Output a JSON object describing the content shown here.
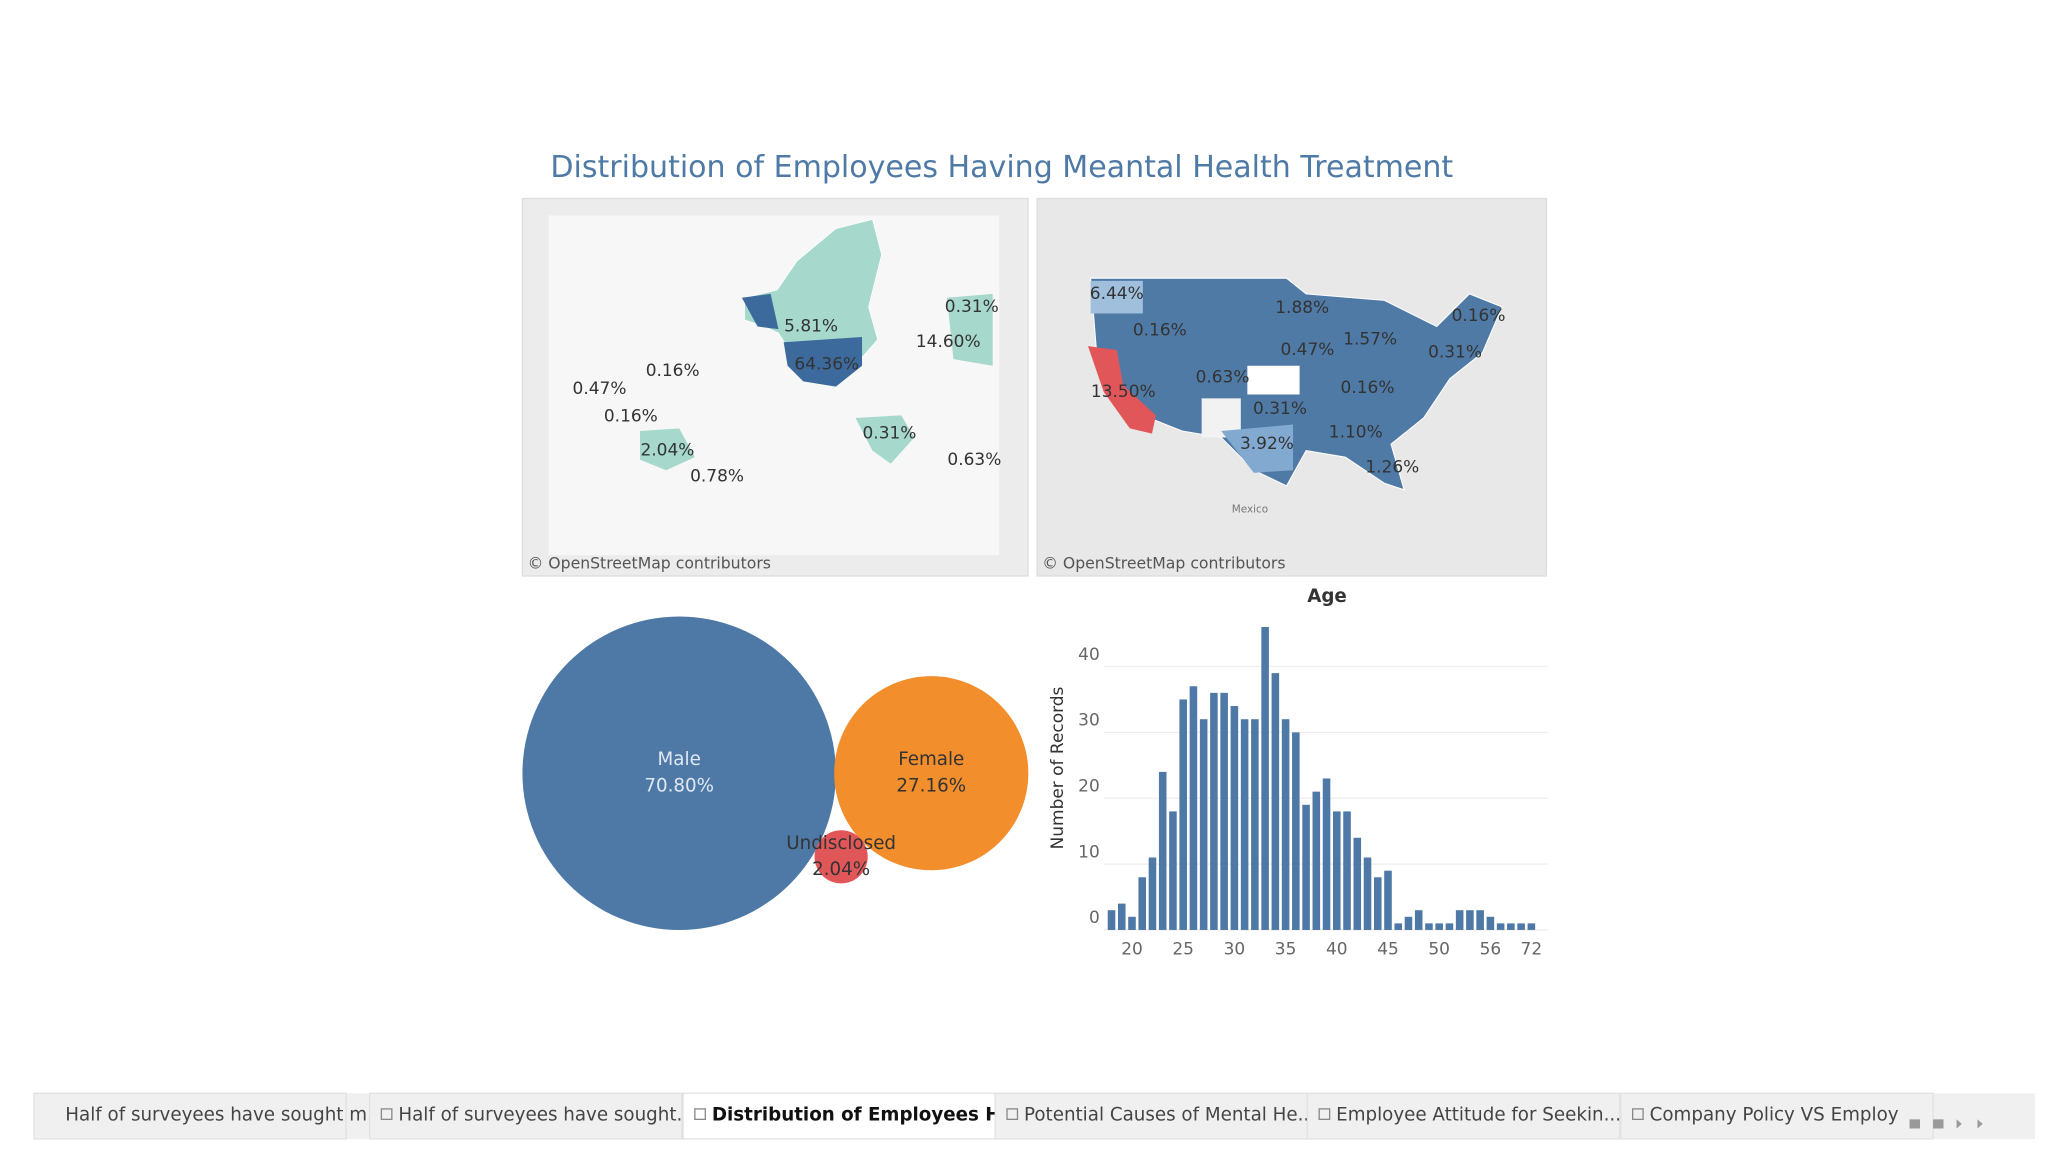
{
  "dashboard_title": "Distribution of Employees Having Meantal Health Treatment",
  "world_map": {
    "labels": [
      "5.81%",
      "64.36%",
      "0.16%",
      "0.47%",
      "0.16%",
      "2.04%",
      "0.78%",
      "0.31%",
      "0.31%",
      "14.60%",
      "0.63%"
    ],
    "attribution": "© OpenStreetMap contributors"
  },
  "us_map": {
    "labels": [
      "6.44%",
      "0.16%",
      "1.88%",
      "0.47%",
      "1.57%",
      "0.16%",
      "0.31%",
      "13.50%",
      "0.63%",
      "0.16%",
      "0.31%",
      "1.10%",
      "3.92%",
      "1.26%"
    ],
    "place_label": "Mexico",
    "attribution": "© OpenStreetMap contributors"
  },
  "chart_data": [
    {
      "type": "bubble",
      "categories": [
        "Male",
        "Female",
        "Undisclosed"
      ],
      "values": [
        70.8,
        27.16,
        2.04
      ],
      "value_labels": [
        "70.80%",
        "27.16%",
        "2.04%"
      ],
      "colors": [
        "#4e79a7",
        "#f28e2b",
        "#e15759"
      ]
    },
    {
      "type": "bar",
      "x_label": "Age",
      "y_label": "Number of Records",
      "categories": [
        null,
        null,
        20,
        null,
        null,
        null,
        null,
        25,
        null,
        null,
        null,
        null,
        30,
        null,
        null,
        null,
        null,
        35,
        null,
        null,
        null,
        null,
        40,
        null,
        null,
        null,
        null,
        45,
        null,
        null,
        null,
        null,
        50,
        null,
        null,
        null,
        null,
        56,
        null,
        null,
        null,
        72
      ],
      "values": [
        3,
        4,
        2,
        8,
        11,
        24,
        18,
        35,
        37,
        32,
        36,
        36,
        34,
        32,
        32,
        46,
        39,
        32,
        30,
        19,
        21,
        23,
        18,
        18,
        14,
        11,
        8,
        9,
        1,
        2,
        3,
        1,
        1,
        1,
        3,
        3,
        3,
        2,
        1,
        1,
        1,
        1
      ],
      "color": "#4e79a7",
      "ylim": [
        0,
        47
      ],
      "yticks": [
        0,
        10,
        20,
        30,
        40
      ],
      "grid": true
    }
  ],
  "tabs": [
    "Half of surveyees have sought m...",
    "Half of surveyees have sought...",
    "Distribution of Employees H...",
    "Potential Causes of Mental He...",
    "Employee Attitude for Seekin...",
    "Company Policy VS Employ"
  ]
}
